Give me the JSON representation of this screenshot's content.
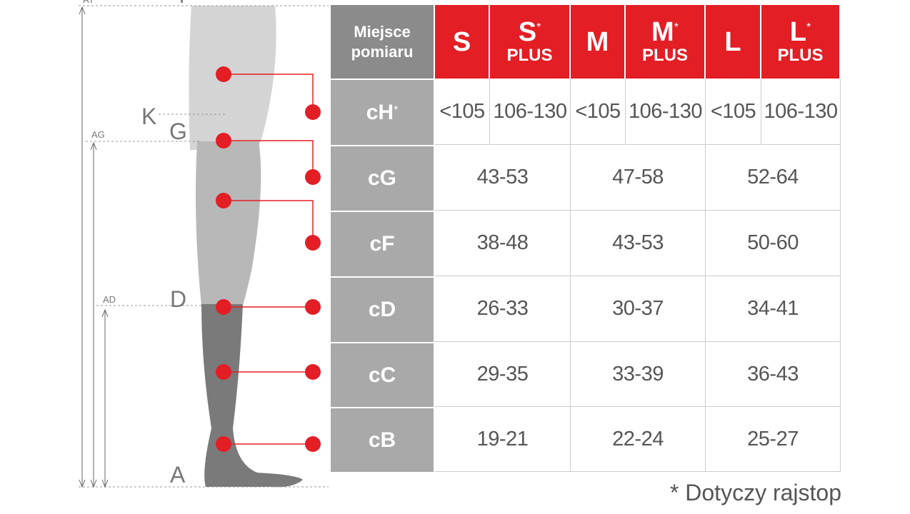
{
  "diagram": {
    "labels": [
      "AT",
      "T",
      "K",
      "G",
      "AG",
      "D",
      "AD",
      "A"
    ]
  },
  "table": {
    "header": {
      "title": "Miejsce pomiaru",
      "sizes": [
        {
          "size": "S"
        },
        {
          "size": "S",
          "star": "*",
          "plus": "PLUS"
        },
        {
          "size": "M"
        },
        {
          "size": "M",
          "star": "*",
          "plus": "PLUS"
        },
        {
          "size": "L"
        },
        {
          "size": "L",
          "star": "*",
          "plus": "PLUS"
        }
      ]
    },
    "rows": [
      {
        "label": "cH",
        "star": "*",
        "values": [
          "<105",
          "106-130",
          "<105",
          "106-130",
          "<105",
          "106-130"
        ]
      },
      {
        "label": "cG",
        "values": [
          "43-53",
          "47-58",
          "52-64"
        ]
      },
      {
        "label": "cF",
        "values": [
          "38-48",
          "43-53",
          "50-60"
        ]
      },
      {
        "label": "cD",
        "values": [
          "26-33",
          "30-37",
          "34-41"
        ]
      },
      {
        "label": "cC",
        "values": [
          "29-35",
          "33-39",
          "36-43"
        ]
      },
      {
        "label": "cB",
        "values": [
          "19-21",
          "22-24",
          "25-27"
        ]
      }
    ]
  },
  "footnote": "* Dotyczy rajstop"
}
